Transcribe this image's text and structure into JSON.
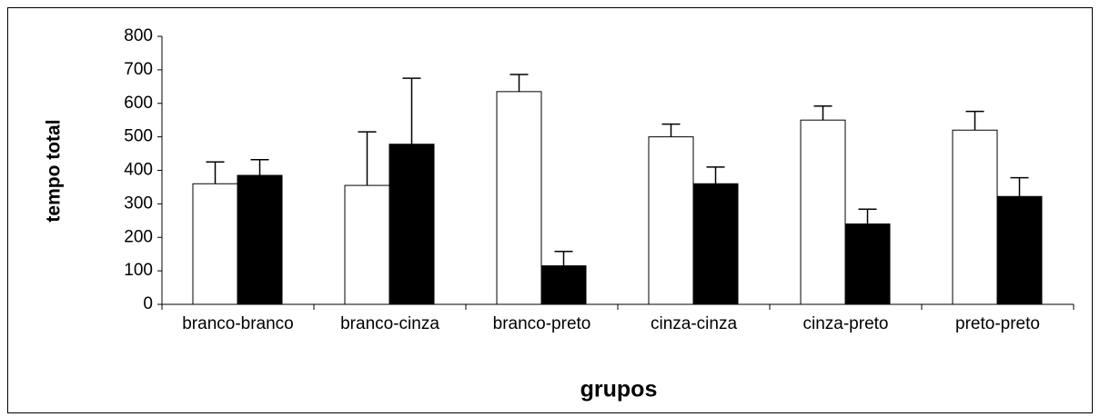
{
  "chart_data": {
    "type": "bar",
    "y_label": "tempo total",
    "x_label": "grupos",
    "categories": [
      "branco-branco",
      "branco-cinza",
      "branco-preto",
      "cinza-cinza",
      "cinza-preto",
      "preto-preto"
    ],
    "series": [
      {
        "color": "#ffffff",
        "values": [
          360,
          355,
          635,
          500,
          550,
          520
        ],
        "errors": [
          65,
          160,
          51,
          38,
          42,
          56
        ]
      },
      {
        "color": "#000000",
        "values": [
          385,
          478,
          115,
          360,
          240,
          322
        ],
        "errors": [
          47,
          197,
          43,
          50,
          44,
          56
        ]
      }
    ],
    "ylim": [
      0,
      800
    ],
    "yticks": [
      0,
      100,
      200,
      300,
      400,
      500,
      600,
      700,
      800
    ],
    "grid": false
  }
}
